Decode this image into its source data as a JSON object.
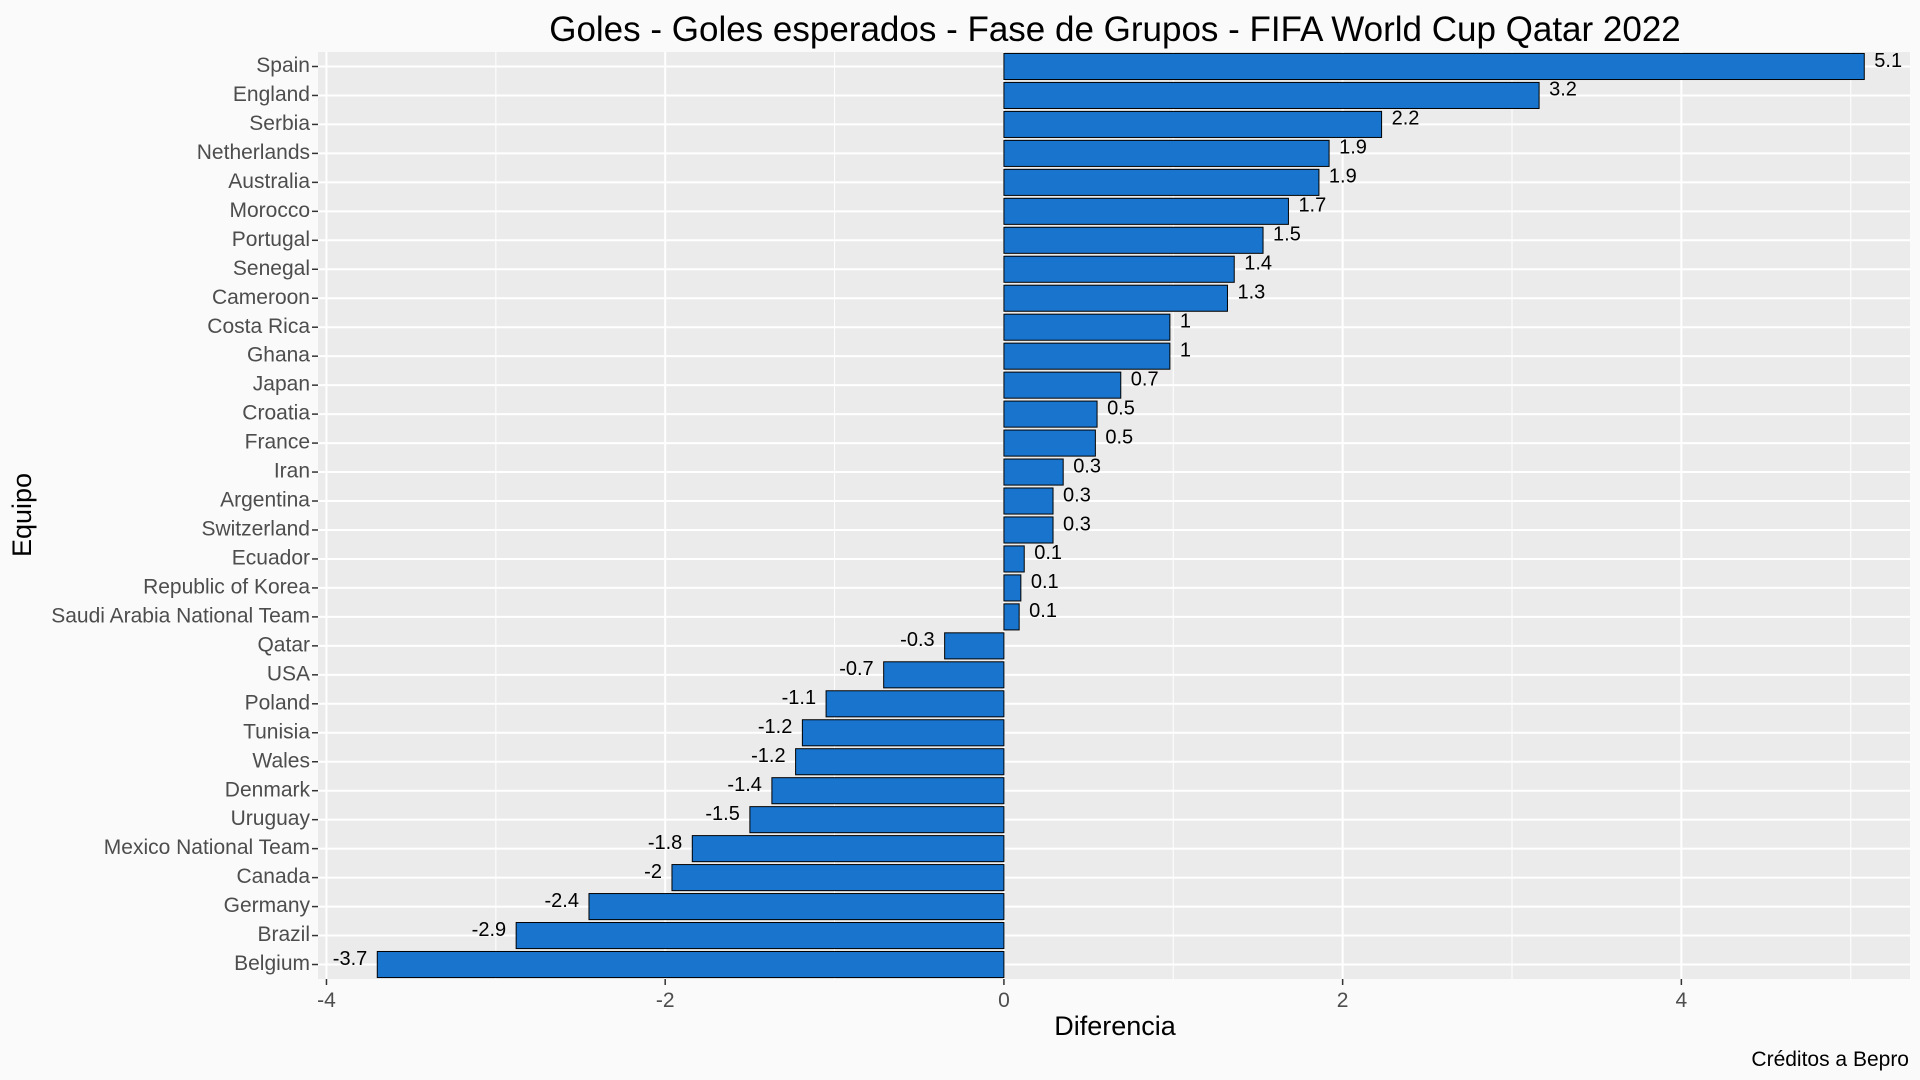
{
  "chart_data": {
    "type": "bar",
    "orientation": "horizontal",
    "title": "Goles - Goles esperados - Fase de Grupos - FIFA World Cup Qatar 2022",
    "xlabel": "Diferencia",
    "ylabel": "Equipo",
    "caption": "Créditos a Bepro",
    "xlim": [
      -4.05,
      5.35
    ],
    "xticks": [
      -4,
      -2,
      0,
      2,
      4
    ],
    "xtick_labels": [
      "-4",
      "-2",
      "0",
      "2",
      "4"
    ],
    "grid": true,
    "bar_color": "#1874cd",
    "bar_border_color": "#000000",
    "panel_color": "#ebebeb",
    "gridline_color": "#ffffff",
    "categories": [
      "Spain",
      "England",
      "Serbia",
      "Netherlands",
      "Australia",
      "Morocco",
      "Portugal",
      "Senegal",
      "Cameroon",
      "Costa Rica",
      "Ghana",
      "Japan",
      "Croatia",
      "France",
      "Iran",
      "Argentina",
      "Switzerland",
      "Ecuador",
      "Republic of Korea",
      "Saudi Arabia National Team",
      "Qatar",
      "USA",
      "Poland",
      "Tunisia",
      "Wales",
      "Denmark",
      "Uruguay",
      "Mexico National Team",
      "Canada",
      "Germany",
      "Brazil",
      "Belgium"
    ],
    "values": [
      5.08,
      3.16,
      2.23,
      1.92,
      1.86,
      1.68,
      1.53,
      1.36,
      1.32,
      0.98,
      0.98,
      0.69,
      0.55,
      0.54,
      0.35,
      0.29,
      0.29,
      0.12,
      0.1,
      0.09,
      -0.35,
      -0.71,
      -1.05,
      -1.19,
      -1.23,
      -1.37,
      -1.5,
      -1.84,
      -1.96,
      -2.45,
      -2.88,
      -3.7
    ],
    "value_labels": [
      "5.1",
      "3.2",
      "2.2",
      "1.9",
      "1.9",
      "1.7",
      "1.5",
      "1.4",
      "1.3",
      "1",
      "1",
      "0.7",
      "0.5",
      "0.5",
      "0.3",
      "0.3",
      "0.3",
      "0.1",
      "0.1",
      "0.1",
      "-0.3",
      "-0.7",
      "-1.1",
      "-1.2",
      "-1.2",
      "-1.4",
      "-1.5",
      "-1.8",
      "-2",
      "-2.4",
      "-2.9",
      "-3.7"
    ]
  }
}
